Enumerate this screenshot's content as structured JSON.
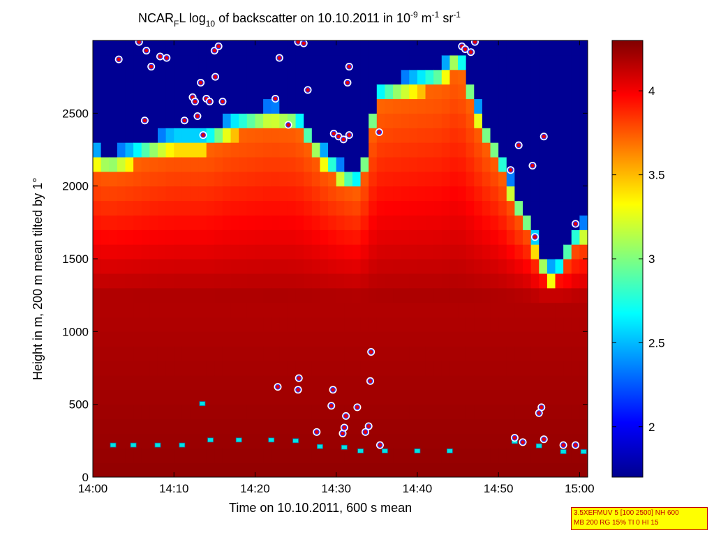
{
  "chart_data": {
    "type": "heatmap",
    "title": "NCAR_F L log10 of backscatter on 10.10.2011 in 10^-9 m^-1 sr^-1",
    "xlabel": "Time on 10.10.2011, 600 s mean",
    "ylabel": "Height in m, 200 m mean tilted by 1°",
    "x_ticks": [
      "14:00",
      "14:10",
      "14:20",
      "14:30",
      "14:40",
      "14:50",
      "15:00"
    ],
    "y_ticks": [
      0,
      500,
      1000,
      1500,
      2000,
      2500
    ],
    "ylim": [
      0,
      3000
    ],
    "xlim_minutes": [
      0,
      61
    ],
    "colorbar": {
      "range": [
        1.7,
        4.3
      ],
      "ticks": [
        2,
        2.5,
        3,
        3.5,
        4
      ],
      "colormap": "jet"
    },
    "cloud_base_markers": {
      "description": "cyan squares",
      "points_minutes_height": [
        [
          2.5,
          220
        ],
        [
          5,
          220
        ],
        [
          8,
          220
        ],
        [
          11,
          220
        ],
        [
          14.5,
          255
        ],
        [
          18,
          255
        ],
        [
          22,
          255
        ],
        [
          25,
          250
        ],
        [
          28,
          210
        ],
        [
          31,
          205
        ],
        [
          33,
          180
        ],
        [
          36,
          180
        ],
        [
          40,
          180
        ],
        [
          44,
          180
        ],
        [
          52,
          245
        ],
        [
          55,
          215
        ],
        [
          58,
          175
        ],
        [
          60.5,
          175
        ],
        [
          13.5,
          505
        ]
      ]
    },
    "aerosol_layer_markers": {
      "description": "white-ringed red/blue circles",
      "points_minutes_height": [
        [
          3.2,
          2870
        ],
        [
          5.7,
          2990
        ],
        [
          6.6,
          2930
        ],
        [
          7.2,
          2820
        ],
        [
          8.3,
          2890
        ],
        [
          9.1,
          2880
        ],
        [
          6.4,
          2450
        ],
        [
          11.3,
          2450
        ],
        [
          12.3,
          2610
        ],
        [
          12.6,
          2580
        ],
        [
          12.9,
          2480
        ],
        [
          13.3,
          2710
        ],
        [
          13.6,
          2350
        ],
        [
          14,
          2600
        ],
        [
          14.4,
          2580
        ],
        [
          15.1,
          2750
        ],
        [
          16,
          2580
        ],
        [
          15,
          2930
        ],
        [
          15.5,
          2960
        ],
        [
          22.5,
          2600
        ],
        [
          24.1,
          2420
        ],
        [
          23,
          2880
        ],
        [
          25.3,
          2990
        ],
        [
          26,
          2980
        ],
        [
          26.5,
          2660
        ],
        [
          29.7,
          2360
        ],
        [
          30.3,
          2340
        ],
        [
          30.9,
          2320
        ],
        [
          31.6,
          2350
        ],
        [
          31.4,
          2710
        ],
        [
          31.6,
          2820
        ],
        [
          35.3,
          2370
        ],
        [
          45.5,
          2960
        ],
        [
          45.9,
          2940
        ],
        [
          46.6,
          2920
        ],
        [
          47.1,
          2990
        ],
        [
          51.5,
          2110
        ],
        [
          52.5,
          2280
        ],
        [
          54.2,
          2140
        ],
        [
          54.5,
          1650
        ],
        [
          55.6,
          2340
        ],
        [
          59.5,
          1740
        ],
        [
          22.8,
          620
        ],
        [
          25.4,
          680
        ],
        [
          25.3,
          600
        ],
        [
          29.6,
          600
        ],
        [
          29.4,
          490
        ],
        [
          27.6,
          310
        ],
        [
          30.8,
          300
        ],
        [
          31.2,
          420
        ],
        [
          34.3,
          860
        ],
        [
          34.2,
          660
        ],
        [
          32.6,
          480
        ],
        [
          35.4,
          220
        ],
        [
          31,
          340
        ],
        [
          34,
          350
        ],
        [
          33.6,
          310
        ],
        [
          55.3,
          480
        ],
        [
          55,
          440
        ],
        [
          55.6,
          260
        ],
        [
          52,
          270
        ],
        [
          53,
          240
        ],
        [
          58,
          220
        ],
        [
          59.5,
          220
        ]
      ]
    }
  },
  "annotation_box": {
    "line1": "3.5XEFMUV 5 [100 2500] NH 600",
    "line2": "MB 200 RG 15% TI 0 HI 15"
  }
}
